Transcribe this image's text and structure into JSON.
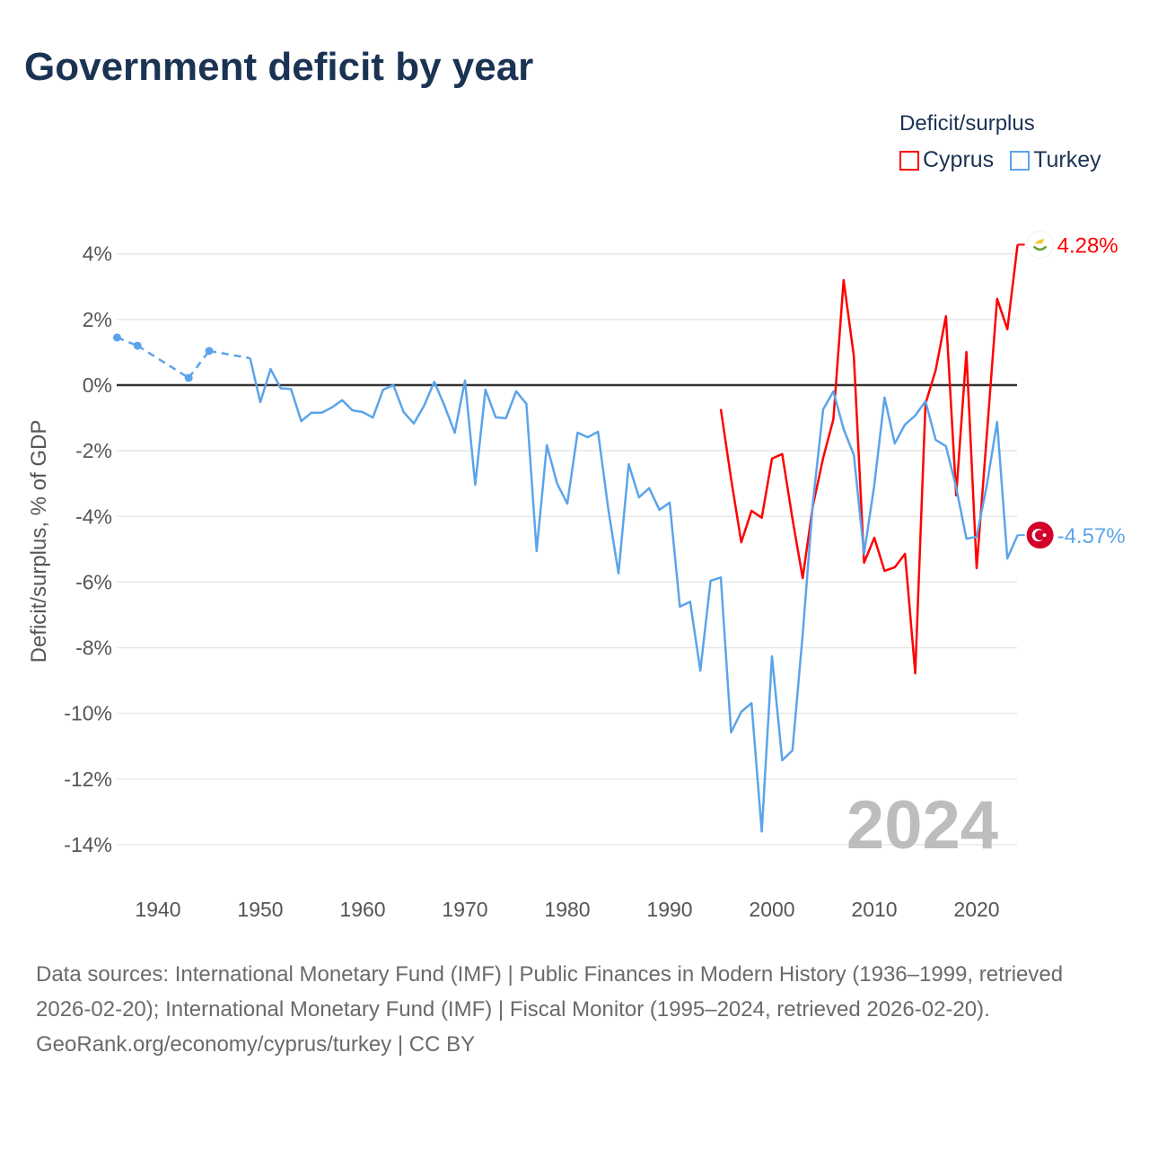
{
  "title": "Government deficit by year",
  "legend": {
    "title": "Deficit/surplus",
    "items": [
      {
        "name": "Cyprus",
        "color": "#ff0000"
      },
      {
        "name": "Turkey",
        "color": "#5ba4ea"
      }
    ]
  },
  "footer": {
    "sources": "Data sources: International Monetary Fund (IMF) | Public Finances in Modern History (1936–1999, retrieved 2026-02-20); International Monetary Fund (IMF) | Fiscal Monitor (1995–2024, retrieved 2026-02-20).",
    "credit": "GeoRank.org/economy/cyprus/turkey | CC BY"
  },
  "chart_data": {
    "type": "line",
    "title": "Government deficit by year",
    "xlabel": "",
    "ylabel": "Deficit/surplus, % of GDP",
    "xlim": [
      1936,
      2024
    ],
    "ylim": [
      -14,
      4
    ],
    "yticks": [
      4,
      2,
      0,
      -2,
      -4,
      -6,
      -8,
      -10,
      -12,
      -14
    ],
    "ytick_labels": [
      "4%",
      "2%",
      "0%",
      "-2%",
      "-4%",
      "-6%",
      "-8%",
      "-10%",
      "-12%",
      "-14%"
    ],
    "xticks": [
      1940,
      1950,
      1960,
      1970,
      1980,
      1990,
      2000,
      2010,
      2020
    ],
    "xtick_labels": [
      "1940",
      "1950",
      "1960",
      "1970",
      "1980",
      "1990",
      "2000",
      "2010",
      "2020"
    ],
    "year_watermark": "2024",
    "grid": true,
    "legend_position": "top-right",
    "series": [
      {
        "name": "Cyprus",
        "color": "#ff0000",
        "end_label": "4.28%",
        "flag": "cyprus",
        "x": [
          1995,
          1996,
          1997,
          1998,
          1999,
          2000,
          2001,
          2002,
          2003,
          2004,
          2005,
          2006,
          2007,
          2008,
          2009,
          2010,
          2011,
          2012,
          2013,
          2014,
          2015,
          2016,
          2017,
          2018,
          2019,
          2020,
          2021,
          2022,
          2023,
          2024
        ],
        "y": [
          -0.73,
          -2.85,
          -4.79,
          -3.83,
          -4.04,
          -2.24,
          -2.1,
          -4.07,
          -5.88,
          -3.67,
          -2.22,
          -1.04,
          3.2,
          0.88,
          -5.41,
          -4.65,
          -5.66,
          -5.55,
          -5.14,
          -8.78,
          -0.57,
          0.46,
          2.1,
          -3.36,
          1.01,
          -5.58,
          -1.5,
          2.63,
          1.7,
          4.28
        ]
      },
      {
        "name": "Turkey",
        "color": "#5ba4ea",
        "end_label": "-4.57%",
        "flag": "turkey",
        "x": [
          1936,
          1938,
          1943,
          1945,
          1949,
          1950,
          1951,
          1952,
          1953,
          1954,
          1955,
          1956,
          1957,
          1958,
          1959,
          1960,
          1961,
          1962,
          1963,
          1964,
          1965,
          1966,
          1967,
          1968,
          1969,
          1970,
          1971,
          1972,
          1973,
          1974,
          1975,
          1976,
          1977,
          1978,
          1979,
          1980,
          1981,
          1982,
          1983,
          1984,
          1985,
          1986,
          1987,
          1988,
          1989,
          1990,
          1991,
          1992,
          1993,
          1994,
          1995,
          1996,
          1997,
          1998,
          1999,
          2000,
          2001,
          2002,
          2003,
          2004,
          2005,
          2006,
          2007,
          2008,
          2009,
          2010,
          2011,
          2012,
          2013,
          2014,
          2015,
          2016,
          2017,
          2018,
          2019,
          2020,
          2021,
          2022,
          2023,
          2024
        ],
        "y": [
          1.45,
          1.2,
          0.22,
          1.04,
          0.82,
          -0.52,
          0.49,
          -0.1,
          -0.12,
          -1.1,
          -0.84,
          -0.84,
          -0.68,
          -0.46,
          -0.77,
          -0.82,
          -0.99,
          -0.14,
          0,
          -0.82,
          -1.17,
          -0.63,
          0.1,
          -0.63,
          -1.45,
          0.14,
          -3.04,
          -0.14,
          -0.98,
          -1.01,
          -0.19,
          -0.57,
          -5.06,
          -1.83,
          -3.0,
          -3.61,
          -1.45,
          -1.59,
          -1.42,
          -3.77,
          -5.74,
          -2.41,
          -3.42,
          -3.14,
          -3.8,
          -3.58,
          -6.75,
          -6.6,
          -8.7,
          -5.96,
          -5.86,
          -10.58,
          -9.95,
          -9.69,
          -13.6,
          -8.26,
          -11.43,
          -11.13,
          -7.6,
          -3.58,
          -0.74,
          -0.19,
          -1.34,
          -2.13,
          -5.14,
          -3.04,
          -0.38,
          -1.78,
          -1.2,
          -0.93,
          -0.49,
          -1.67,
          -1.86,
          -3.12,
          -4.68,
          -4.62,
          -3.04,
          -1.12,
          -5.28,
          -4.57
        ]
      }
    ]
  }
}
